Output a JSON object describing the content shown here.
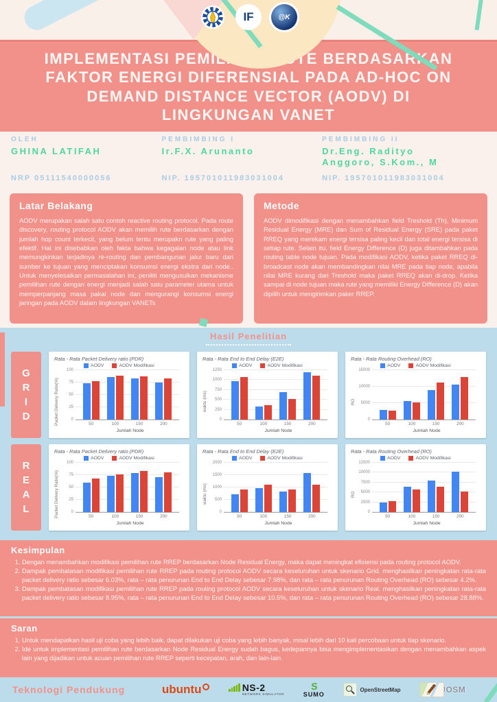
{
  "poster": {
    "title": "IMPLEMENTASI PEMILIHAN RUTE BERDASARKAN FAKTOR ENERGI DIFERENSIAL PADA AD-HOC ON DEMAND DISTANCE VECTOR (AODV) DI LINGKUNGAN VANET",
    "header_logos": {
      "if": "IF",
      "atk": "@K"
    }
  },
  "people": [
    {
      "role": "OLEH",
      "name": "GHINA LATIFAH",
      "id": "NRP 05111540000056"
    },
    {
      "role": "PEMBIMBING I",
      "name": "Ir.F.X. Arunanto",
      "id": "NIP. 195701011983031004"
    },
    {
      "role": "PEMBIMBING II",
      "name": "Dr.Eng. Radityo Anggoro, S.Kom., M",
      "id": "NIP. 195701011983031004"
    }
  ],
  "latar_belakang": {
    "heading": "Latar Belakang",
    "body": "AODV merupakan salah satu contoh reactive routing protocol. Pada route discovery, routing protocol AODV akan memilih rute berdasarkan dengan jumlah hop count terkecil, yang belum tentu merupakn rute yang paling efektif. Hal ini disebabkan oleh fakta bahwa kegagalan node atau link memungkinkan terjadinya re-routing dan pembangunan jalur baru dari sumber ke tujuan yang menciptakan konsumsi energi ekstra dari node.. Untuk menyelesaikan permasalahan ini, peniliti mengusulkan mekanisme pemilihan rute dengan energi menjadi salah satu parameter utama untuk memperpanjang masa pakai node dan mengurangi konsumsi energi jaringan pada AODV dalam lingkungan VANETs"
  },
  "metode": {
    "heading": "Metode",
    "body": "AODV dimodifikasi dengan menambahkan field Treshold (Th), Minimum Residual Energy (MRE) dan Sum of Residual Energy (SRE) pada paket RREQ yang merekam energi tersisa paling kecil dan total energi tersisa di setiap rute. Selain itu, field Energy Difference (D) juga ditambahkan pada routing table node tujuan. Pada modifikasi AODV, ketika paket RREQ di-broadcast node akan membandingkan nilai MRE pada tiap node, apabila nilai MRE kurang dari Treshold maka paket RREQ akan di-drop. Ketika sampai di node tujuan maka rute yang memiliki Energy Difference (D) akan dipilih untuk mengirimkan paker RREP."
  },
  "hasil": {
    "heading": "Hasil Penelitian",
    "rows": [
      "GRID",
      "REAL"
    ]
  },
  "kesimpulan": {
    "heading": "Kesimpulan",
    "items": [
      "Dengan menambahkan modifikasi pemilihan rute RREP berdasarkan Node Residual Energy, maka dapat meningkat efisiensi pada routing protocol AODV.",
      "Dampak pembatasan modifikasi pemilihan rute RREP pada routing protocol AODV secara keseluruhan untuk skenario Grid. menghasilkan peningkatan rata-rata packet delivery ratio sebesar 6.03%, rata – rata penurunan End to End Delay sebesar 7.98%, dan rata – rata penurunan Routing Overhead (RO) sebesar 4.2%.",
      "Dampak pembatasan modifikasi pemilihan rute RREP pada routing protocol AODV secara keseluruhan untuk skenario Real. menghasilkan peningkatan rata-rata packet delivery ratio sebesar 8.95%, rata – rata penurunan End to End Delay sebesar 10.5%, dan rata – rata penurunan Routing Overhead (RO) sebesar 28.88%."
    ]
  },
  "saran": {
    "heading": "Saran",
    "items": [
      "Untuk mendapatkan hasil uji coba yang lebih baik, dapat dilakukan uji coba yang lebih banyak, misal lebih dari 10 kali percobaan untuk tiap skenario.",
      "Ide untuk implementasi pemilihan rute berdasarkan Node Residual Energy sudah bagus, kedepannya bisa mengimplementasikan dengan menambahkan aspek lain yang dijadikan untuk acuan pemilihan rute RREP seperti kecepatan, arah, dan lain-lain."
    ]
  },
  "footer": {
    "heading": "Teknologi Pendukung",
    "ubuntu_label": "ubuntu",
    "ns2_label": "NS-2",
    "ns2_sub": "NETWORK SIMULATOR",
    "sumo_mark": "S",
    "sumo_label": "SUMO",
    "osm_label": "OpenStreetMap",
    "josm_label": "JOSM"
  },
  "colors": {
    "salmon": "#F2918A",
    "cream": "#FAF0EA",
    "light_blue": "#BCDCEC",
    "label_blue": "#A9CCE5",
    "green": "#4FD6A0",
    "chart_blue": "#4285F4",
    "chart_red": "#DB4437"
  },
  "chart_data": [
    {
      "type": "bar",
      "scenario": "GRID",
      "title": "Rata - Rata Packet Delivery ratio (PDR)",
      "xlabel": "Jumlah Node",
      "ylabel": "Packet Delivery Ratio(%)",
      "categories": [
        "50",
        "100",
        "150",
        "200"
      ],
      "ylim": [
        0,
        100
      ],
      "yticks": [
        0,
        25,
        50,
        75,
        100
      ],
      "grid": true,
      "legend_position": "top",
      "series": [
        {
          "name": "AODV",
          "color": "#4285F4",
          "values": [
            73,
            86,
            84,
            75
          ]
        },
        {
          "name": "AODV Modifikasi",
          "color": "#DB4437",
          "values": [
            78,
            89,
            88,
            84
          ]
        }
      ]
    },
    {
      "type": "bar",
      "scenario": "GRID",
      "title": "Rata - Rata End to End Delay (E2E)",
      "xlabel": "Jumlah Node",
      "ylabel": "waktu (ms)",
      "categories": [
        "50",
        "100",
        "150",
        "200"
      ],
      "ylim": [
        0,
        1250
      ],
      "yticks": [
        0,
        250,
        500,
        750,
        1000,
        1250
      ],
      "grid": true,
      "legend_position": "top",
      "series": [
        {
          "name": "AODV",
          "color": "#4285F4",
          "values": [
            970,
            330,
            690,
            1200
          ]
        },
        {
          "name": "AODV Modifikasi",
          "color": "#DB4437",
          "values": [
            1075,
            360,
            520,
            1120
          ]
        }
      ]
    },
    {
      "type": "bar",
      "scenario": "GRID",
      "title": "Rata - Rata Routing Overhead (RO)",
      "xlabel": "Jumlah Node",
      "ylabel": "RO",
      "categories": [
        "50",
        "100",
        "150",
        "200"
      ],
      "ylim": [
        0,
        15000
      ],
      "yticks": [
        0,
        5000,
        10000,
        15000
      ],
      "grid": true,
      "legend_position": "top",
      "series": [
        {
          "name": "AODV",
          "color": "#4285F4",
          "values": [
            3000,
            5700,
            8900,
            10700
          ]
        },
        {
          "name": "AODV Modifikasi",
          "color": "#DB4437",
          "values": [
            2800,
            5200,
            11300,
            12900
          ]
        }
      ]
    },
    {
      "type": "bar",
      "scenario": "REAL",
      "title": "Rata - Rata Packet Delivery ratio (PDR)",
      "xlabel": "Jumlah Node",
      "ylabel": "Packet Delivery Ratio(%)",
      "categories": [
        "50",
        "100",
        "150",
        "200"
      ],
      "ylim": [
        0,
        100
      ],
      "yticks": [
        0,
        25,
        50,
        75,
        100
      ],
      "grid": true,
      "legend_position": "top",
      "series": [
        {
          "name": "AODV",
          "color": "#4285F4",
          "values": [
            60,
            73,
            79,
            71
          ]
        },
        {
          "name": "AODV Modifikasi",
          "color": "#DB4437",
          "values": [
            68,
            77,
            83,
            80
          ]
        }
      ]
    },
    {
      "type": "bar",
      "scenario": "REAL",
      "title": "Rata - Rata End to End Delay (E2E)",
      "xlabel": "Jumlah Node",
      "ylabel": "waktu (ms)",
      "categories": [
        "50",
        "100",
        "150",
        "200"
      ],
      "ylim": [
        0,
        2000
      ],
      "yticks": [
        0,
        500,
        1000,
        1500,
        2000
      ],
      "grid": true,
      "legend_position": "top",
      "series": [
        {
          "name": "AODV",
          "color": "#4285F4",
          "values": [
            720,
            980,
            820,
            1580
          ]
        },
        {
          "name": "AODV Modifikasi",
          "color": "#DB4437",
          "values": [
            910,
            1110,
            910,
            1110
          ]
        }
      ]
    },
    {
      "type": "bar",
      "scenario": "REAL",
      "title": "Rata - Rata Routing Overhead (RO)",
      "xlabel": "Jumlah Node",
      "ylabel": "RO",
      "categories": [
        "50",
        "100",
        "150",
        "200"
      ],
      "ylim": [
        0,
        12500
      ],
      "yticks": [
        0,
        2500,
        5000,
        7500,
        10000,
        12500
      ],
      "grid": true,
      "legend_position": "top",
      "series": [
        {
          "name": "AODV",
          "color": "#4285F4",
          "values": [
            2500,
            6500,
            8000,
            10300
          ]
        },
        {
          "name": "AODV Modifikasi",
          "color": "#DB4437",
          "values": [
            2800,
            5700,
            6500,
            5200
          ]
        }
      ]
    }
  ]
}
